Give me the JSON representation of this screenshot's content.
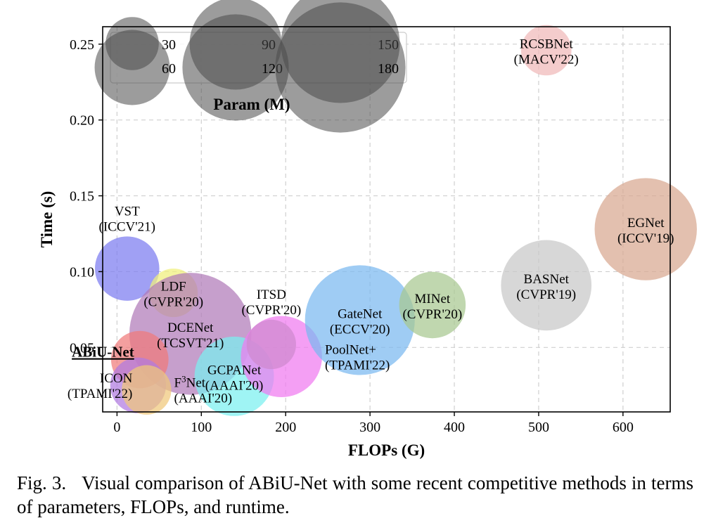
{
  "chart_data": {
    "type": "scatter",
    "subtype": "bubble",
    "xlabel": "FLOPs (G)",
    "ylabel": "Time (s)",
    "xlim": [
      -17,
      656
    ],
    "ylim": [
      0.0075,
      0.2615
    ],
    "xticks": [
      0,
      100,
      200,
      300,
      400,
      500,
      600
    ],
    "yticks": [
      0.05,
      0.1,
      0.15,
      0.2,
      0.25
    ],
    "grid": true,
    "size_legend": {
      "title": "Param (M)",
      "placement": "top-left",
      "entries": [
        {
          "label": "30",
          "size": 30
        },
        {
          "label": "60",
          "size": 60
        },
        {
          "label": "90",
          "size": 90
        },
        {
          "label": "120",
          "size": 120
        },
        {
          "label": "150",
          "size": 150
        },
        {
          "label": "180",
          "size": 180
        }
      ]
    },
    "points": [
      {
        "name": "VST",
        "venue": "(ICCV'21)",
        "x": 12,
        "y": 0.102,
        "params": 44,
        "color": "#7b7bf0",
        "label_pos": "above"
      },
      {
        "name": "LDF",
        "venue": "(CVPR'20)",
        "x": 67,
        "y": 0.086,
        "params": 25,
        "color": "#f0f07a",
        "label_pos": "center"
      },
      {
        "name": "DCENet",
        "venue": "(TCSVT'21)",
        "x": 87,
        "y": 0.059,
        "params": 158,
        "color": "#b07ab8",
        "label_pos": "center"
      },
      {
        "name": "ABiU-Net",
        "venue": "",
        "x": 27,
        "y": 0.042,
        "params": 35,
        "color": "#f07a7a",
        "label_pos": "left",
        "highlight": true
      },
      {
        "name": "ICON",
        "venue": "(TPAMI'22)",
        "x": 25,
        "y": 0.025,
        "params": 33,
        "color": "#b07ae0",
        "label_pos": "left"
      },
      {
        "name": "F3Net",
        "venue": "(AAAI'20)",
        "x": 35,
        "y": 0.022,
        "params": 26,
        "color": "#f0c87a",
        "label_pos": "right"
      },
      {
        "name": "GCPANet",
        "venue": "(AAAI'20)",
        "x": 139,
        "y": 0.031,
        "params": 67,
        "color": "#7af0f0",
        "label_pos": "center"
      },
      {
        "name": "ITSD",
        "venue": "(CVPR'20)",
        "x": 183,
        "y": 0.052,
        "params": 26,
        "color": "#7ab07a",
        "label_pos": "above"
      },
      {
        "name": "PoolNet+",
        "venue": "(TPAMI'22)",
        "x": 195,
        "y": 0.044,
        "params": 70,
        "color": "#f07af0",
        "label_pos": "right"
      },
      {
        "name": "GateNet",
        "venue": "(ECCV'20)",
        "x": 288,
        "y": 0.068,
        "params": 128,
        "color": "#7ab8f0",
        "label_pos": "center"
      },
      {
        "name": "MINet",
        "venue": "(CVPR'20)",
        "x": 374,
        "y": 0.078,
        "params": 47,
        "color": "#a8c890",
        "label_pos": "center"
      },
      {
        "name": "BASNet",
        "venue": "(CVPR'19)",
        "x": 509,
        "y": 0.091,
        "params": 87,
        "color": "#c8c8c8",
        "label_pos": "center"
      },
      {
        "name": "EGNet",
        "venue": "(ICCV'19)",
        "x": 627,
        "y": 0.128,
        "params": 111,
        "color": "#d8a890",
        "label_pos": "center"
      },
      {
        "name": "RCSBNet",
        "venue": "(MACV'22)",
        "x": 509,
        "y": 0.246,
        "params": 27,
        "color": "#f0b8b8",
        "label_pos": "center"
      }
    ]
  },
  "caption": {
    "fig": "Fig. 3.",
    "text": "Visual comparison of ABiU-Net with some recent competitive methods in terms of parameters, FLOPs, and runtime."
  }
}
